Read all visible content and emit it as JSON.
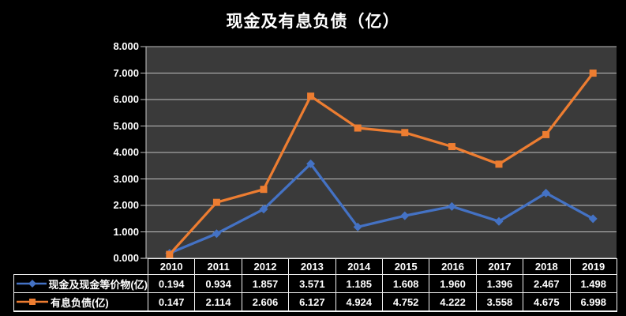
{
  "chart": {
    "background_color": "#000000",
    "plot_background_color": "#3A3A3A",
    "gridline_color": "#BFBFBF",
    "axis_line_color": "#C9C9C9",
    "baseline_color": "#F2F2F2",
    "table_border_color": "#F2F2F2",
    "text_color": "#FFFFFF"
  },
  "chart_data": {
    "type": "line",
    "title": "现金及有息负债（亿）",
    "xlabel": "",
    "ylabel": "",
    "categories": [
      "2010",
      "2011",
      "2012",
      "2013",
      "2014",
      "2015",
      "2016",
      "2017",
      "2018",
      "2019"
    ],
    "series": [
      {
        "name": "现金及现金等价物(亿)",
        "color": "#4472C4",
        "marker": "diamond",
        "values": [
          0.194,
          0.934,
          1.857,
          3.571,
          1.185,
          1.608,
          1.96,
          1.396,
          2.467,
          1.498
        ]
      },
      {
        "name": "有息负债(亿)",
        "color": "#ED7D31",
        "marker": "square",
        "values": [
          0.147,
          2.114,
          2.606,
          6.127,
          4.924,
          4.752,
          4.222,
          3.558,
          4.675,
          6.998
        ]
      }
    ],
    "ylim": [
      0,
      8
    ],
    "ytick_step": 1,
    "ytick_decimals": 3,
    "grid": true,
    "legend_position": "table-left",
    "value_decimals": 3
  }
}
